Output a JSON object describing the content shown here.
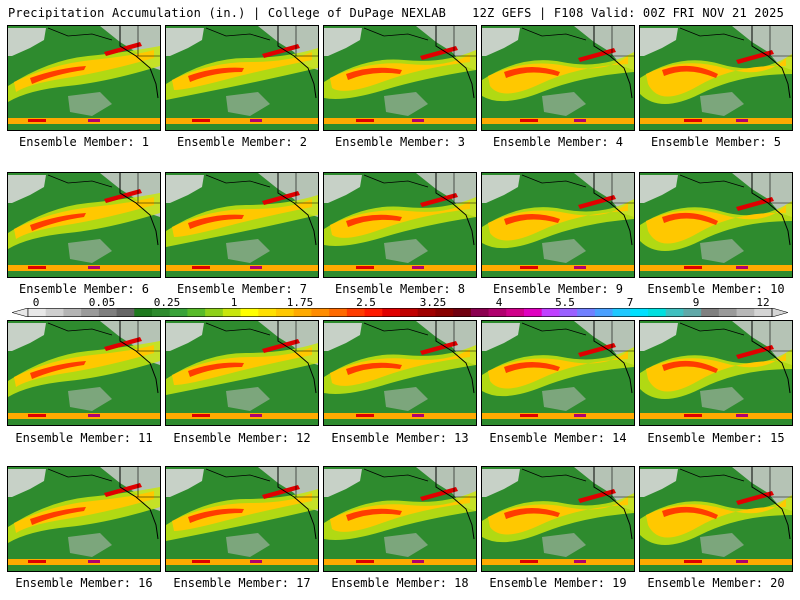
{
  "header": {
    "left": "Precipitation Accumulation (in.) | College of DuPage NEXLAB",
    "right": "12Z GEFS | F108 Valid: 00Z FRI NOV 21 2025"
  },
  "legend": {
    "labels": [
      "0",
      "0.05",
      "0.25",
      "1",
      "1.75",
      "2.5",
      "3.25",
      "4",
      "5.5",
      "7",
      "9",
      "12"
    ],
    "colors": [
      "#e8e8e8",
      "#cfcfcf",
      "#b4b4b4",
      "#9a9a9a",
      "#7f7f7f",
      "#666666",
      "#1f7a1f",
      "#2e8b2e",
      "#3aa33a",
      "#58bb2a",
      "#8fd11a",
      "#c8e60e",
      "#ffff00",
      "#ffe000",
      "#ffc800",
      "#ffaa00",
      "#ff8c00",
      "#ff6a00",
      "#ff3c00",
      "#ff1a00",
      "#e00000",
      "#c00000",
      "#a00000",
      "#880000",
      "#700010",
      "#8b0050",
      "#b0006e",
      "#d0008a",
      "#e000c0",
      "#c040ff",
      "#9a60ff",
      "#7080ff",
      "#4aa0ff",
      "#20c8ff",
      "#00e0ff",
      "#00e0e0",
      "#40c0c0",
      "#60a8a8",
      "#808080",
      "#9a9a9a",
      "#b8b8b8",
      "#d4d4d4"
    ]
  },
  "panels": [
    {
      "caption": "Ensemble Member: 1"
    },
    {
      "caption": "Ensemble Member: 2"
    },
    {
      "caption": "Ensemble Member: 3"
    },
    {
      "caption": "Ensemble Member: 4"
    },
    {
      "caption": "Ensemble Member: 5"
    },
    {
      "caption": "Ensemble Member: 6"
    },
    {
      "caption": "Ensemble Member: 7"
    },
    {
      "caption": "Ensemble Member: 8"
    },
    {
      "caption": "Ensemble Member: 9"
    },
    {
      "caption": "Ensemble Member: 10"
    },
    {
      "caption": "Ensemble Member: 11"
    },
    {
      "caption": "Ensemble Member: 12"
    },
    {
      "caption": "Ensemble Member: 13"
    },
    {
      "caption": "Ensemble Member: 14"
    },
    {
      "caption": "Ensemble Member: 15"
    },
    {
      "caption": "Ensemble Member: 16"
    },
    {
      "caption": "Ensemble Member: 17"
    },
    {
      "caption": "Ensemble Member: 18"
    },
    {
      "caption": "Ensemble Member: 19"
    },
    {
      "caption": "Ensemble Member: 20"
    }
  ]
}
